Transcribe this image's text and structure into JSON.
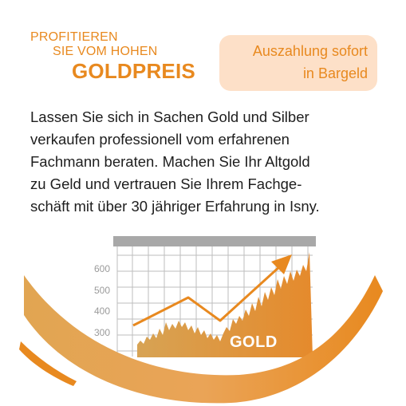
{
  "headline": {
    "line1": "PROFITIEREN",
    "line2": "SIE VOM HOHEN",
    "line3": "GOLDPREIS"
  },
  "badge": {
    "line1": "Auszahlung sofort",
    "line2": "in Bargeld"
  },
  "body": {
    "lines": [
      "Lassen Sie sich in Sachen Gold und Silber",
      "verkaufen professionell vom erfahrenen",
      "Fachmann beraten. Machen Sie Ihr Altgold",
      "zu Geld und vertrauen Sie Ihrem Fachge-",
      "schäft mit über 30 jähriger Erfahrung in Isny."
    ]
  },
  "chart": {
    "y_ticks": [
      "600",
      "500",
      "400",
      "300"
    ],
    "label": "GOLD"
  },
  "colors": {
    "accent": "#e8891f",
    "badge_bg": "#fde0c8",
    "text": "#1e1e1e",
    "grid": "#bdbdbd",
    "grid_header": "#a8a8a8"
  }
}
